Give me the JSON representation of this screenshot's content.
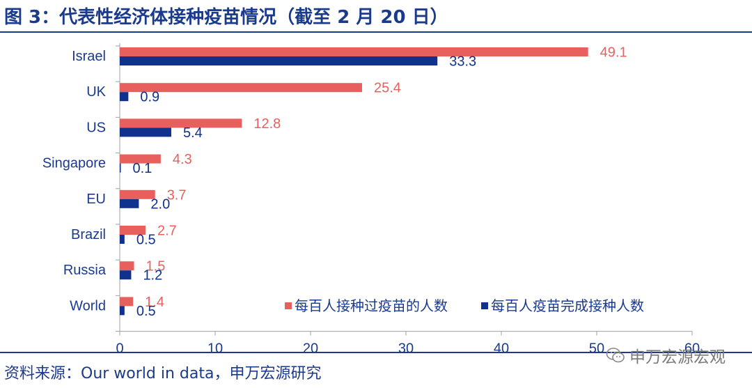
{
  "header": {
    "title": "图 3：代表性经济体接种疫苗情况（截至 2 月 20 日）"
  },
  "footer": {
    "source": "资料来源：Our world in data，申万宏源研究",
    "watermark": "申万宏源宏观",
    "watermark_icon": "wechat-icon"
  },
  "chart_data": {
    "type": "bar",
    "orientation": "horizontal",
    "categories": [
      "Israel",
      "UK",
      "US",
      "Singapore",
      "EU",
      "Brazil",
      "Russia",
      "World"
    ],
    "series": [
      {
        "name": "每百人接种过疫苗的人数",
        "color": "#e8605e",
        "values": [
          49.1,
          25.4,
          12.8,
          4.3,
          3.7,
          2.7,
          1.5,
          1.4
        ]
      },
      {
        "name": "每百人疫苗完成接种人数",
        "color": "#10318c",
        "values": [
          33.3,
          0.9,
          5.4,
          0.1,
          2.0,
          0.5,
          1.2,
          0.5
        ]
      }
    ],
    "xlim": [
      0,
      60
    ],
    "xticks": [
      0,
      10,
      20,
      30,
      40,
      50,
      60
    ],
    "grid": false,
    "legend_position": "bottom-right",
    "label_color": "#1a3a8c"
  }
}
